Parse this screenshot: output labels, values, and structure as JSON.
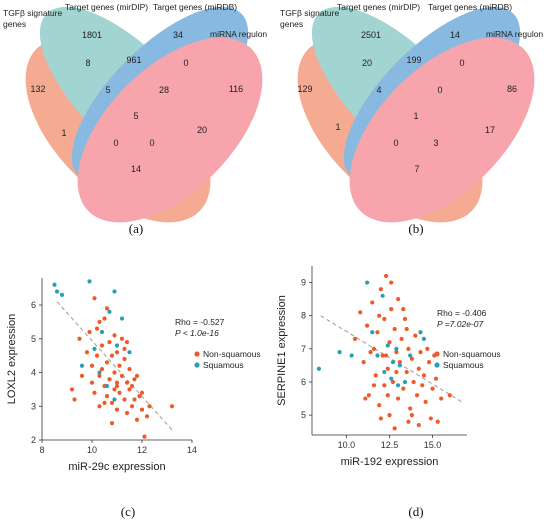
{
  "panel_a": {
    "caption": "(a)",
    "set_labels": [
      "TGFβ signature genes",
      "Target genes (mirDIP)",
      "Target genes (miRDB)",
      "miRNA regulon"
    ],
    "counts": [
      "132",
      "1801",
      "34",
      "116",
      "8",
      "961",
      "0",
      "5",
      "28",
      "1",
      "5",
      "20",
      "0",
      "0",
      "14"
    ]
  },
  "panel_b": {
    "caption": "(b)",
    "set_labels": [
      "TGFβ signature genes",
      "Target genes (mirDIP)",
      "Target genes (miRDB)",
      "miRNA regulon"
    ],
    "counts": [
      "129",
      "2501",
      "14",
      "86",
      "20",
      "199",
      "0",
      "4",
      "0",
      "1",
      "1",
      "17",
      "0",
      "3",
      "7"
    ]
  },
  "colors": {
    "tgfb": "#f28b67",
    "mirdip": "#7fc4c0",
    "mirdb": "#5a9fd6",
    "regulon": "#f4828e",
    "non_squamous": "#f05a28",
    "squamous": "#2a9fb2",
    "trend": "#aaaaaa"
  },
  "chart_data": [
    {
      "type": "scatter",
      "caption": "(c)",
      "xlabel": "miR-29c expression",
      "ylabel": "LOXL2 expression",
      "xlim": [
        8,
        14
      ],
      "ylim": [
        2,
        6.8
      ],
      "xticks": [
        "8",
        "10",
        "12",
        "14"
      ],
      "yticks": [
        "2",
        "3",
        "4",
        "5",
        "6"
      ],
      "stats": {
        "rho": "Rho = -0.527",
        "p": "P < 1.0e-16"
      },
      "legend": [
        "Non-squamous",
        "Squamous"
      ],
      "trend": {
        "x": [
          8.6,
          13.2
        ],
        "y": [
          6.1,
          2.3
        ]
      },
      "series": [
        {
          "name": "Non-squamous",
          "points": [
            [
              9.2,
              3.5
            ],
            [
              9.3,
              3.2
            ],
            [
              9.5,
              5.0
            ],
            [
              9.6,
              3.9
            ],
            [
              9.8,
              4.6
            ],
            [
              9.9,
              5.2
            ],
            [
              10.0,
              4.2
            ],
            [
              10.0,
              3.7
            ],
            [
              10.1,
              3.4
            ],
            [
              10.2,
              4.5
            ],
            [
              10.2,
              5.3
            ],
            [
              10.3,
              3.9
            ],
            [
              10.3,
              3.0
            ],
            [
              10.4,
              4.8
            ],
            [
              10.4,
              4.1
            ],
            [
              10.5,
              5.6
            ],
            [
              10.5,
              3.6
            ],
            [
              10.6,
              4.3
            ],
            [
              10.6,
              3.3
            ],
            [
              10.7,
              4.9
            ],
            [
              10.7,
              3.8
            ],
            [
              10.8,
              4.5
            ],
            [
              10.8,
              3.1
            ],
            [
              10.9,
              5.1
            ],
            [
              10.9,
              4.0
            ],
            [
              10.9,
              3.5
            ],
            [
              11.0,
              4.6
            ],
            [
              11.0,
              3.7
            ],
            [
              11.0,
              2.9
            ],
            [
              11.1,
              4.2
            ],
            [
              11.1,
              3.4
            ],
            [
              11.2,
              5.0
            ],
            [
              11.2,
              3.9
            ],
            [
              11.3,
              4.4
            ],
            [
              11.3,
              3.2
            ],
            [
              11.4,
              3.7
            ],
            [
              11.4,
              2.8
            ],
            [
              11.5,
              4.1
            ],
            [
              11.5,
              3.5
            ],
            [
              11.6,
              3.0
            ],
            [
              11.7,
              3.8
            ],
            [
              11.8,
              2.6
            ],
            [
              11.9,
              3.3
            ],
            [
              12.0,
              2.9
            ],
            [
              12.1,
              2.1
            ],
            [
              12.3,
              3.0
            ],
            [
              13.2,
              3.0
            ],
            [
              10.1,
              6.2
            ],
            [
              10.6,
              5.9
            ],
            [
              10.3,
              5.5
            ],
            [
              11.4,
              4.9
            ],
            [
              11.6,
              3.6
            ],
            [
              11.8,
              3.9
            ],
            [
              12.0,
              3.4
            ],
            [
              12.2,
              2.7
            ],
            [
              10.8,
              2.5
            ],
            [
              11.0,
              3.6
            ],
            [
              11.3,
              4.7
            ],
            [
              10.5,
              3.1
            ],
            [
              11.7,
              3.2
            ]
          ]
        },
        {
          "name": "Squamous",
          "points": [
            [
              8.5,
              6.6
            ],
            [
              8.6,
              6.4
            ],
            [
              8.8,
              6.3
            ],
            [
              9.6,
              4.2
            ],
            [
              9.9,
              6.7
            ],
            [
              10.1,
              4.7
            ],
            [
              10.4,
              5.2
            ],
            [
              10.7,
              5.8
            ],
            [
              10.9,
              6.4
            ],
            [
              11.0,
              4.8
            ],
            [
              11.2,
              5.6
            ],
            [
              10.6,
              3.6
            ],
            [
              10.9,
              3.2
            ],
            [
              11.5,
              4.6
            ],
            [
              10.3,
              4.0
            ]
          ]
        }
      ]
    },
    {
      "type": "scatter",
      "caption": "(d)",
      "xlabel": "miR-192 expression",
      "ylabel": "SERPINE1 expression",
      "xlim": [
        8,
        17
      ],
      "ylim": [
        4.4,
        9.5
      ],
      "xticks": [
        "10.0",
        "12.5",
        "15.0"
      ],
      "yticks": [
        "5",
        "6",
        "7",
        "8",
        "9"
      ],
      "stats": {
        "rho": "Rho = -0.406",
        "p": "P =7.02e-07"
      },
      "legend": [
        "Non-squamous",
        "Squamous"
      ],
      "trend": {
        "x": [
          8.5,
          16.7
        ],
        "y": [
          8.0,
          5.4
        ]
      },
      "series": [
        {
          "name": "Non-squamous",
          "points": [
            [
              10.5,
              7.3
            ],
            [
              10.8,
              8.1
            ],
            [
              11.0,
              6.6
            ],
            [
              11.2,
              7.7
            ],
            [
              11.3,
              5.6
            ],
            [
              11.5,
              8.4
            ],
            [
              11.6,
              7.0
            ],
            [
              11.7,
              6.2
            ],
            [
              11.8,
              7.5
            ],
            [
              11.9,
              5.3
            ],
            [
              12.0,
              8.8
            ],
            [
              12.1,
              6.8
            ],
            [
              12.2,
              7.9
            ],
            [
              12.2,
              5.9
            ],
            [
              12.3,
              9.2
            ],
            [
              12.4,
              6.4
            ],
            [
              12.5,
              7.2
            ],
            [
              12.5,
              5.0
            ],
            [
              12.6,
              8.2
            ],
            [
              12.7,
              6.0
            ],
            [
              12.8,
              7.6
            ],
            [
              12.9,
              6.9
            ],
            [
              13.0,
              5.5
            ],
            [
              13.0,
              8.5
            ],
            [
              13.1,
              6.6
            ],
            [
              13.2,
              7.3
            ],
            [
              13.3,
              5.8
            ],
            [
              13.4,
              7.9
            ],
            [
              13.5,
              6.3
            ],
            [
              13.6,
              7.0
            ],
            [
              13.7,
              5.2
            ],
            [
              13.8,
              6.7
            ],
            [
              13.9,
              6.0
            ],
            [
              14.0,
              7.4
            ],
            [
              14.1,
              5.6
            ],
            [
              14.2,
              6.4
            ],
            [
              14.3,
              6.9
            ],
            [
              14.4,
              5.9
            ],
            [
              14.5,
              6.2
            ],
            [
              14.6,
              5.4
            ],
            [
              14.8,
              6.6
            ],
            [
              15.0,
              5.8
            ],
            [
              15.2,
              6.1
            ],
            [
              15.3,
              4.8
            ],
            [
              15.5,
              5.5
            ],
            [
              16.0,
              5.6
            ],
            [
              11.4,
              6.9
            ],
            [
              12.0,
              4.9
            ],
            [
              12.8,
              4.6
            ],
            [
              13.6,
              4.8
            ],
            [
              14.2,
              4.7
            ],
            [
              11.9,
              8.0
            ],
            [
              12.6,
              9.0
            ],
            [
              13.3,
              8.2
            ],
            [
              14.7,
              7.0
            ],
            [
              15.1,
              6.8
            ],
            [
              11.1,
              5.5
            ],
            [
              12.4,
              5.6
            ],
            [
              13.8,
              5.0
            ],
            [
              14.9,
              4.9
            ],
            [
              12.9,
              6.3
            ],
            [
              13.5,
              7.6
            ],
            [
              12.3,
              6.8
            ],
            [
              11.6,
              5.9
            ]
          ]
        },
        {
          "name": "Squamous",
          "points": [
            [
              8.4,
              6.4
            ],
            [
              9.6,
              6.9
            ],
            [
              10.3,
              6.8
            ],
            [
              11.2,
              9.0
            ],
            [
              11.5,
              7.5
            ],
            [
              11.8,
              6.8
            ],
            [
              12.1,
              8.6
            ],
            [
              12.4,
              7.1
            ],
            [
              12.6,
              6.1
            ],
            [
              12.7,
              6.6
            ],
            [
              12.9,
              7.0
            ],
            [
              13.1,
              6.5
            ],
            [
              13.4,
              6.0
            ],
            [
              14.3,
              7.5
            ],
            [
              14.5,
              7.3
            ],
            [
              13.0,
              5.9
            ],
            [
              12.2,
              6.3
            ],
            [
              13.7,
              6.8
            ]
          ]
        }
      ]
    }
  ]
}
